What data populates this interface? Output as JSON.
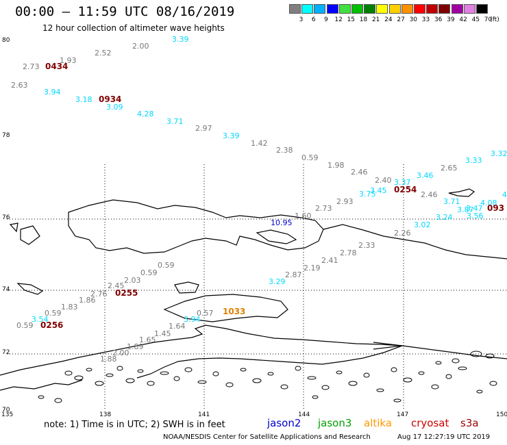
{
  "header": {
    "title": "00:00 – 11:59 UTC 08/16/2019",
    "subtitle": "12 hour collection of altimeter wave heights"
  },
  "legend": {
    "unit": "(ft)",
    "bins": [
      {
        "label": "3",
        "color": "#808080"
      },
      {
        "label": "6",
        "color": "#00ffff"
      },
      {
        "label": "9",
        "color": "#00b0ff"
      },
      {
        "label": "12",
        "color": "#0000ff"
      },
      {
        "label": "15",
        "color": "#40e040"
      },
      {
        "label": "18",
        "color": "#00c000"
      },
      {
        "label": "21",
        "color": "#008000"
      },
      {
        "label": "24",
        "color": "#ffff00"
      },
      {
        "label": "27",
        "color": "#ffd000"
      },
      {
        "label": "30",
        "color": "#ff9000"
      },
      {
        "label": "33",
        "color": "#ff0000"
      },
      {
        "label": "36",
        "color": "#c00000"
      },
      {
        "label": "39",
        "color": "#800000"
      },
      {
        "label": "42",
        "color": "#a000a0"
      },
      {
        "label": "45",
        "color": "#e080e0"
      },
      {
        "label": "70",
        "color": "#000000"
      }
    ]
  },
  "axes": {
    "lat_labels": [
      "80",
      "78",
      "76",
      "74",
      "72",
      "70"
    ],
    "lon_labels": [
      "135",
      "138",
      "141",
      "144",
      "147",
      "150"
    ]
  },
  "points": [
    {
      "v": "3.39",
      "c": "#00d8ff"
    },
    {
      "v": "2.00",
      "c": "#777777"
    },
    {
      "v": "2.52",
      "c": "#777777"
    },
    {
      "v": "1.93",
      "c": "#777777"
    },
    {
      "v": "2.73",
      "c": "#777777"
    },
    {
      "v": "2.63",
      "c": "#777777"
    },
    {
      "v": "3.94",
      "c": "#00d8ff"
    },
    {
      "v": "3.18",
      "c": "#00d8ff"
    },
    {
      "v": "3.09",
      "c": "#00d8ff"
    },
    {
      "v": "4.28",
      "c": "#00d8ff"
    },
    {
      "v": "3.71",
      "c": "#00d8ff"
    },
    {
      "v": "2.97",
      "c": "#777777"
    },
    {
      "v": "3.39",
      "c": "#00d8ff"
    },
    {
      "v": "1.42",
      "c": "#777777"
    },
    {
      "v": "2.38",
      "c": "#777777"
    },
    {
      "v": "0.59",
      "c": "#777777"
    },
    {
      "v": "1.98",
      "c": "#777777"
    },
    {
      "v": "2.46",
      "c": "#777777"
    },
    {
      "v": "2.40",
      "c": "#777777"
    },
    {
      "v": "3.37",
      "c": "#00d8ff"
    },
    {
      "v": "3.46",
      "c": "#00d8ff"
    },
    {
      "v": "2.65",
      "c": "#777777"
    },
    {
      "v": "3.33",
      "c": "#00d8ff"
    },
    {
      "v": "3.32",
      "c": "#00d8ff"
    },
    {
      "v": "3.45",
      "c": "#00d8ff"
    },
    {
      "v": "3.75",
      "c": "#00d8ff"
    },
    {
      "v": "2.46",
      "c": "#777777"
    },
    {
      "v": "2.93",
      "c": "#777777"
    },
    {
      "v": "2.73",
      "c": "#777777"
    },
    {
      "v": "3.71",
      "c": "#00d8ff"
    },
    {
      "v": "3.47",
      "c": "#00d8ff"
    },
    {
      "v": "3.87",
      "c": "#00d8ff"
    },
    {
      "v": "4.08",
      "c": "#00d8ff"
    },
    {
      "v": "4",
      "c": "#00d8ff"
    },
    {
      "v": "3.24",
      "c": "#00d8ff"
    },
    {
      "v": "3.56",
      "c": "#00d8ff"
    },
    {
      "v": "1.60",
      "c": "#777777"
    },
    {
      "v": "10.95",
      "c": "#0000cc"
    },
    {
      "v": "3.02",
      "c": "#00d8ff"
    },
    {
      "v": "2.26",
      "c": "#777777"
    },
    {
      "v": "2.33",
      "c": "#777777"
    },
    {
      "v": "2.78",
      "c": "#777777"
    },
    {
      "v": "2.41",
      "c": "#777777"
    },
    {
      "v": "2.19",
      "c": "#777777"
    },
    {
      "v": "2.87",
      "c": "#777777"
    },
    {
      "v": "3.29",
      "c": "#00d8ff"
    },
    {
      "v": "0.59",
      "c": "#777777"
    },
    {
      "v": "0.59",
      "c": "#777777"
    },
    {
      "v": "2.03",
      "c": "#777777"
    },
    {
      "v": "2.45",
      "c": "#777777"
    },
    {
      "v": "2.76",
      "c": "#777777"
    },
    {
      "v": "1.86",
      "c": "#777777"
    },
    {
      "v": "1.83",
      "c": "#777777"
    },
    {
      "v": "0.59",
      "c": "#777777"
    },
    {
      "v": "3.54",
      "c": "#00d8ff"
    },
    {
      "v": "0.59",
      "c": "#777777"
    },
    {
      "v": "0.57",
      "c": "#777777"
    },
    {
      "v": "3.94",
      "c": "#00d8ff"
    },
    {
      "v": "1.64",
      "c": "#777777"
    },
    {
      "v": "1.45",
      "c": "#777777"
    },
    {
      "v": "1.65",
      "c": "#777777"
    },
    {
      "v": "1.89",
      "c": "#777777"
    },
    {
      "v": "2.00",
      "c": "#777777"
    },
    {
      "v": "1.88",
      "c": "#777777"
    }
  ],
  "times": [
    {
      "v": "0434"
    },
    {
      "v": "0934"
    },
    {
      "v": "0254"
    },
    {
      "v": "093"
    },
    {
      "v": "0255"
    },
    {
      "v": "0256"
    },
    {
      "v": "1033",
      "alt": true
    }
  ],
  "footer": {
    "note": "note:  1) Time is in UTC;  2) SWH is in feet",
    "satellites": [
      {
        "name": "jason2",
        "color": "#0000cc"
      },
      {
        "name": "jason3",
        "color": "#00a000"
      },
      {
        "name": "altika",
        "color": "#ff9900"
      },
      {
        "name": "cryosat",
        "color": "#cc0000"
      },
      {
        "name": "s3a",
        "color": "#990000"
      }
    ],
    "credit": "NOAA/NESDIS Center for Satellite Applications and Research",
    "timestamp": "Aug 17 12:27:19 UTC 2019"
  }
}
